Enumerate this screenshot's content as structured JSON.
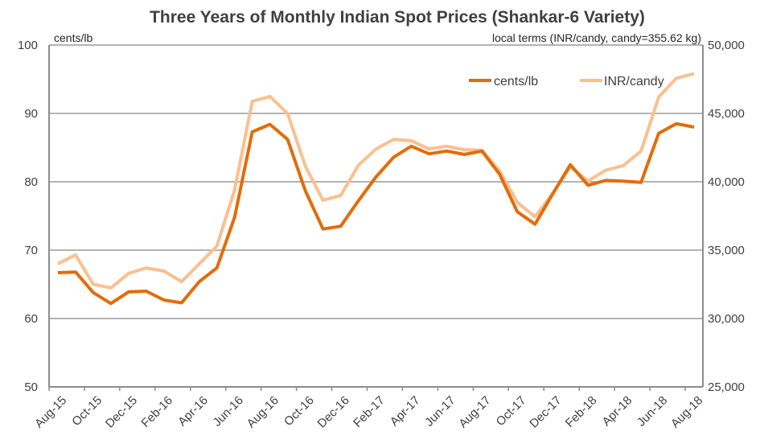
{
  "chart_data": {
    "type": "line",
    "title": "Three Years of Monthly Indian Spot Prices (Shankar-6 Variety)",
    "ylabel_left": "cents/lb",
    "ylabel_right": "local terms (INR/candy, candy=355.62 kg)",
    "ylim_left": [
      50,
      100
    ],
    "ylim_right": [
      25000,
      50000
    ],
    "yticks_left": [
      "50",
      "60",
      "70",
      "80",
      "90",
      "100"
    ],
    "yticks_right": [
      "25,000",
      "30,000",
      "35,000",
      "40,000",
      "45,000",
      "50,000"
    ],
    "grid": true,
    "legend_position": "top-right",
    "x": [
      "Aug-15",
      "Sep-15",
      "Oct-15",
      "Nov-15",
      "Dec-15",
      "Jan-16",
      "Feb-16",
      "Mar-16",
      "Apr-16",
      "May-16",
      "Jun-16",
      "Jul-16",
      "Aug-16",
      "Sep-16",
      "Oct-16",
      "Nov-16",
      "Dec-16",
      "Jan-17",
      "Feb-17",
      "Mar-17",
      "Apr-17",
      "May-17",
      "Jun-17",
      "Jul-17",
      "Aug-17",
      "Sep-17",
      "Oct-17",
      "Nov-17",
      "Dec-17",
      "Jan-18",
      "Feb-18",
      "Mar-18",
      "Apr-18",
      "May-18",
      "Jun-18",
      "Jul-18",
      "Aug-18"
    ],
    "xtick_labels": [
      "Aug-15",
      "Oct-15",
      "Dec-15",
      "Feb-16",
      "Apr-16",
      "Jun-16",
      "Aug-16",
      "Oct-16",
      "Dec-16",
      "Feb-17",
      "Apr-17",
      "Jun-17",
      "Aug-17",
      "Oct-17",
      "Dec-17",
      "Feb-18",
      "Apr-18",
      "Jun-18",
      "Aug-18"
    ],
    "series": [
      {
        "name": "cents/lb",
        "axis": "left",
        "color": "#E36C0A",
        "values": [
          66.7,
          66.8,
          63.8,
          62.2,
          63.9,
          64.0,
          62.7,
          62.3,
          65.4,
          67.4,
          74.8,
          87.3,
          88.4,
          86.2,
          78.7,
          73.1,
          73.5,
          77.2,
          80.7,
          83.6,
          85.2,
          84.1,
          84.5,
          84.0,
          84.5,
          81.1,
          75.6,
          73.8,
          78.2,
          82.5,
          79.5,
          80.2,
          80.1,
          79.9,
          87.1,
          88.5,
          88.0
        ]
      },
      {
        "name": "INR/candy",
        "axis": "right",
        "color": "#FAC090",
        "values": [
          34000,
          34650,
          32500,
          32250,
          33300,
          33700,
          33470,
          32700,
          34000,
          35300,
          39400,
          45880,
          46240,
          45000,
          41150,
          38650,
          39000,
          41200,
          42400,
          43100,
          43000,
          42400,
          42600,
          42350,
          42310,
          40780,
          38490,
          37450,
          39140,
          41100,
          40060,
          40840,
          41180,
          42250,
          46200,
          47570,
          47900
        ]
      }
    ]
  }
}
